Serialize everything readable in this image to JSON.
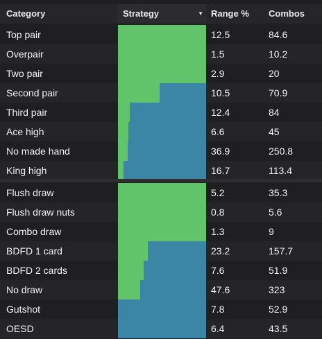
{
  "colors": {
    "background": "#1f1f21",
    "header_background": "#262628",
    "strategy_green": "#61c46a",
    "strategy_blue": "#3c86a5"
  },
  "header": {
    "category": "Category",
    "strategy": "Strategy",
    "range": "Range %",
    "combos": "Combos",
    "sort_icon": "sort-down-caret"
  },
  "made_hands": [
    {
      "category": "Top pair",
      "green_fraction": 1.0,
      "range": "12.5",
      "combos": "84.6"
    },
    {
      "category": "Overpair",
      "green_fraction": 1.0,
      "range": "1.5",
      "combos": "10.2"
    },
    {
      "category": "Two pair",
      "green_fraction": 1.0,
      "range": "2.9",
      "combos": "20"
    },
    {
      "category": "Second pair",
      "green_fraction": 0.47,
      "range": "10.5",
      "combos": "70.9"
    },
    {
      "category": "Third pair",
      "green_fraction": 0.13,
      "range": "12.4",
      "combos": "84"
    },
    {
      "category": "Ace high",
      "green_fraction": 0.12,
      "range": "6.6",
      "combos": "45"
    },
    {
      "category": "No made hand",
      "green_fraction": 0.11,
      "range": "36.9",
      "combos": "250.8"
    },
    {
      "category": "King high",
      "green_fraction": 0.06,
      "range": "16.7",
      "combos": "113.4"
    }
  ],
  "draws": [
    {
      "category": "Flush draw",
      "green_fraction": 1.0,
      "range": "5.2",
      "combos": "35.3"
    },
    {
      "category": "Flush draw nuts",
      "green_fraction": 1.0,
      "range": "0.8",
      "combos": "5.6"
    },
    {
      "category": "Combo draw",
      "green_fraction": 1.0,
      "range": "1.3",
      "combos": "9"
    },
    {
      "category": "BDFD 1 card",
      "green_fraction": 0.34,
      "range": "23.2",
      "combos": "157.7"
    },
    {
      "category": "BDFD 2 cards",
      "green_fraction": 0.29,
      "range": "7.6",
      "combos": "51.9"
    },
    {
      "category": "No draw",
      "green_fraction": 0.25,
      "range": "47.6",
      "combos": "323"
    },
    {
      "category": "Gutshot",
      "green_fraction": 0.0,
      "range": "7.8",
      "combos": "52.9"
    },
    {
      "category": "OESD",
      "green_fraction": 0.0,
      "range": "6.4",
      "combos": "43.5"
    }
  ]
}
